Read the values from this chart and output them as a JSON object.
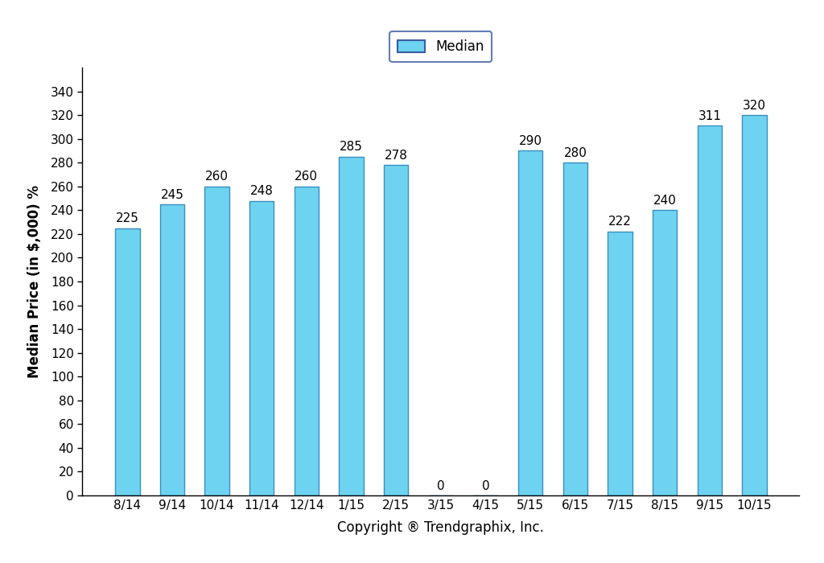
{
  "categories": [
    "8/14",
    "9/14",
    "10/14",
    "11/14",
    "12/14",
    "1/15",
    "2/15",
    "3/15",
    "4/15",
    "5/15",
    "6/15",
    "7/15",
    "8/15",
    "9/15",
    "10/15"
  ],
  "values": [
    225,
    245,
    260,
    248,
    260,
    285,
    278,
    0,
    0,
    290,
    280,
    222,
    240,
    311,
    320
  ],
  "bar_color": "#6DD3F0",
  "bar_edgecolor": "#3A8FBF",
  "ylabel": "Median Price (in $,000) %",
  "xlabel": "Copyright ® Trendgraphix, Inc.",
  "ylim": [
    0,
    360
  ],
  "yticks": [
    0,
    20,
    40,
    60,
    80,
    100,
    120,
    140,
    160,
    180,
    200,
    220,
    240,
    260,
    280,
    300,
    320,
    340
  ],
  "legend_label": "Median",
  "legend_edgecolor": "#3A5DA0",
  "label_fontsize": 12,
  "tick_fontsize": 11,
  "bar_label_fontsize": 11,
  "background_color": "#FFFFFF",
  "bar_width": 0.55
}
